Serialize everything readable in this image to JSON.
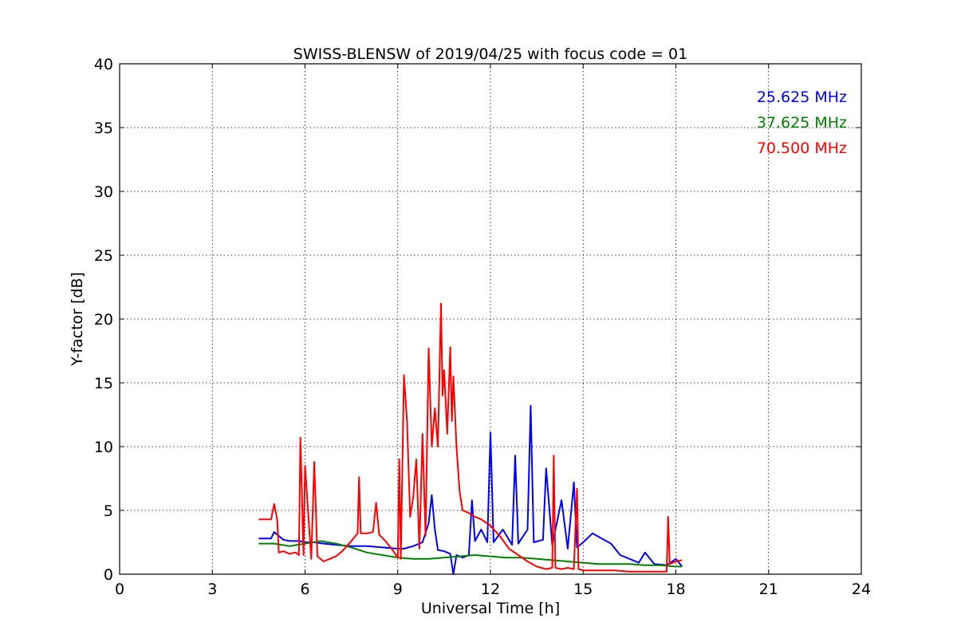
{
  "chart_data": {
    "type": "line",
    "title": "SWISS-BLENSW of 2019/04/25 with focus code = 01",
    "xlabel": "Universal Time [h]",
    "ylabel": "Y-factor [dB]",
    "xlim": [
      0,
      24
    ],
    "ylim": [
      0,
      40
    ],
    "xticks": [
      0,
      3,
      6,
      9,
      12,
      15,
      18,
      21,
      24
    ],
    "yticks": [
      0,
      5,
      10,
      15,
      20,
      25,
      30,
      35,
      40
    ],
    "grid": true,
    "legend_position": "top-right",
    "series": [
      {
        "name": "25.625 MHz",
        "color": "#0000ff",
        "x": [
          4.5,
          4.9,
          5.0,
          5.3,
          5.5,
          5.8,
          6.0,
          6.3,
          6.6,
          7.0,
          7.5,
          8.0,
          8.5,
          9.0,
          9.2,
          9.5,
          9.8,
          10.0,
          10.1,
          10.2,
          10.3,
          10.5,
          10.7,
          10.8,
          10.9,
          11.1,
          11.3,
          11.4,
          11.5,
          11.7,
          11.9,
          12.0,
          12.1,
          12.4,
          12.7,
          12.8,
          12.9,
          13.2,
          13.3,
          13.4,
          13.7,
          13.8,
          14.0,
          14.3,
          14.5,
          14.7,
          14.8,
          15.0,
          15.3,
          15.6,
          15.9,
          16.2,
          16.5,
          16.8,
          17.0,
          17.3,
          17.7,
          18.0,
          18.2
        ],
        "values": [
          2.8,
          2.8,
          3.3,
          2.7,
          2.6,
          2.6,
          2.5,
          2.5,
          2.4,
          2.3,
          2.2,
          2.2,
          2.1,
          2.0,
          2.0,
          2.2,
          2.5,
          4.0,
          6.2,
          3.5,
          1.9,
          1.8,
          1.6,
          0.0,
          1.5,
          1.3,
          1.5,
          5.8,
          2.6,
          3.5,
          2.5,
          11.1,
          2.5,
          3.5,
          2.3,
          9.3,
          2.4,
          3.5,
          13.2,
          2.5,
          2.7,
          8.3,
          2.3,
          5.8,
          2.0,
          7.2,
          2.1,
          2.5,
          3.2,
          2.8,
          2.4,
          1.5,
          1.2,
          0.9,
          1.7,
          0.8,
          0.7,
          1.2,
          0.6
        ]
      },
      {
        "name": "37.625 MHz",
        "color": "#008000",
        "x": [
          4.5,
          5.0,
          5.5,
          6.0,
          6.5,
          7.0,
          7.5,
          8.0,
          8.5,
          9.0,
          9.5,
          10.0,
          10.5,
          11.0,
          11.5,
          12.0,
          12.5,
          13.0,
          13.5,
          14.0,
          14.5,
          15.0,
          15.5,
          16.0,
          16.5,
          17.0,
          17.5,
          18.0,
          18.2
        ],
        "values": [
          2.4,
          2.4,
          2.2,
          2.4,
          2.6,
          2.4,
          2.1,
          1.7,
          1.5,
          1.3,
          1.2,
          1.2,
          1.3,
          1.4,
          1.5,
          1.4,
          1.3,
          1.3,
          1.2,
          1.1,
          1.0,
          0.9,
          0.8,
          0.8,
          0.8,
          0.7,
          0.7,
          0.6,
          0.6
        ]
      },
      {
        "name": "70.500 MHz",
        "color": "#ff0000",
        "x": [
          4.5,
          4.7,
          4.9,
          5.0,
          5.1,
          5.15,
          5.3,
          5.5,
          5.7,
          5.8,
          5.85,
          5.95,
          6.0,
          6.2,
          6.3,
          6.4,
          6.6,
          6.8,
          7.0,
          7.2,
          7.5,
          7.7,
          7.75,
          7.8,
          8.0,
          8.2,
          8.3,
          8.4,
          8.6,
          8.8,
          9.0,
          9.05,
          9.1,
          9.2,
          9.3,
          9.4,
          9.5,
          9.6,
          9.7,
          9.8,
          9.9,
          10.0,
          10.1,
          10.2,
          10.3,
          10.4,
          10.45,
          10.5,
          10.6,
          10.7,
          10.75,
          10.8,
          10.9,
          11.0,
          11.1,
          11.3,
          11.5,
          11.7,
          12.0,
          12.3,
          12.6,
          12.9,
          13.2,
          13.5,
          13.8,
          14.0,
          14.05,
          14.1,
          14.3,
          14.5,
          14.7,
          14.8,
          14.85,
          15.0,
          15.3,
          15.6,
          16.0,
          16.5,
          17.0,
          17.5,
          17.7,
          17.75,
          17.8,
          18.0,
          18.2
        ],
        "values": [
          4.3,
          4.3,
          4.3,
          5.5,
          4.3,
          1.7,
          1.8,
          1.6,
          1.7,
          1.5,
          10.7,
          1.5,
          8.5,
          1.2,
          8.8,
          1.4,
          1.0,
          1.2,
          1.4,
          1.8,
          2.6,
          3.2,
          7.6,
          3.2,
          3.2,
          3.3,
          5.6,
          3.1,
          2.6,
          2.0,
          1.3,
          9.0,
          1.2,
          15.6,
          12.0,
          4.5,
          6.0,
          9.0,
          2.0,
          11.0,
          3.0,
          17.7,
          10.0,
          13.0,
          10.0,
          21.2,
          14.0,
          16.0,
          11.0,
          17.8,
          12.0,
          15.5,
          10.0,
          6.5,
          5.0,
          4.8,
          4.5,
          4.3,
          3.8,
          3.0,
          2.0,
          1.5,
          1.0,
          0.6,
          0.4,
          0.5,
          9.3,
          0.5,
          0.4,
          0.5,
          0.4,
          6.7,
          0.4,
          0.3,
          0.3,
          0.3,
          0.3,
          0.2,
          0.2,
          0.2,
          0.2,
          4.5,
          0.8,
          1.0,
          1.1
        ]
      }
    ]
  }
}
